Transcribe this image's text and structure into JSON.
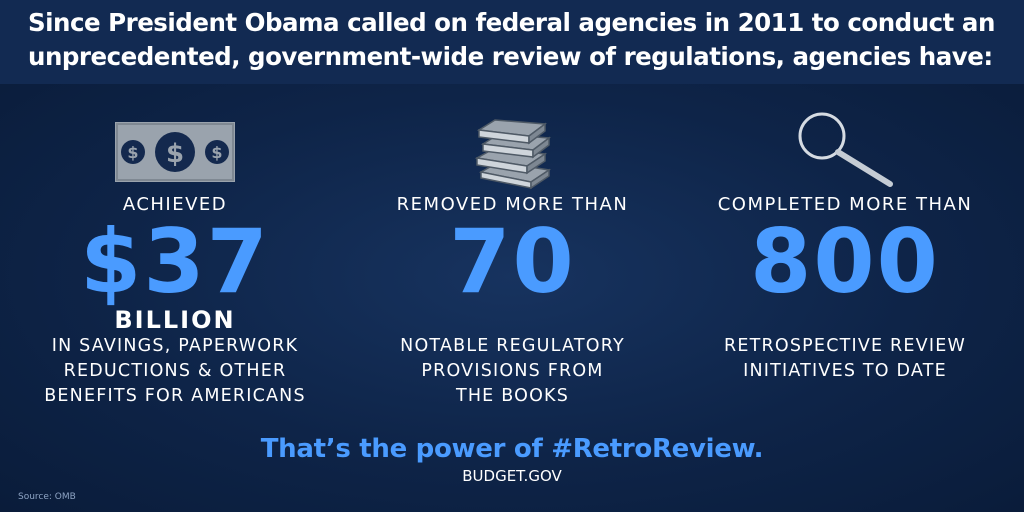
{
  "headline": "Since President Obama called on federal agencies in 2011 to conduct an unprecedented, government-wide review of regulations, agencies have:",
  "stats": [
    {
      "icon": "dollar-bill-icon",
      "lead": "ACHIEVED",
      "value": "$37",
      "unit": "BILLION",
      "desc_lines": [
        "IN SAVINGS, PAPERWORK",
        "REDUCTIONS & OTHER",
        "BENEFITS FOR AMERICANS"
      ]
    },
    {
      "icon": "books-icon",
      "lead": "REMOVED MORE THAN",
      "value": "70",
      "desc_lines": [
        "NOTABLE REGULATORY",
        "PROVISIONS FROM",
        "THE BOOKS"
      ]
    },
    {
      "icon": "magnifying-glass-icon",
      "lead": "COMPLETED MORE THAN",
      "value": "800",
      "desc_lines": [
        "RETROSPECTIVE REVIEW",
        "INITIATIVES TO DATE"
      ]
    }
  ],
  "tagline": "That’s the power of #RetroReview.",
  "site": "BUDGET.GOV",
  "source": "Source: OMB",
  "colors": {
    "background": "#0d2244",
    "header": "#122a52",
    "accent": "#4a9bff"
  }
}
